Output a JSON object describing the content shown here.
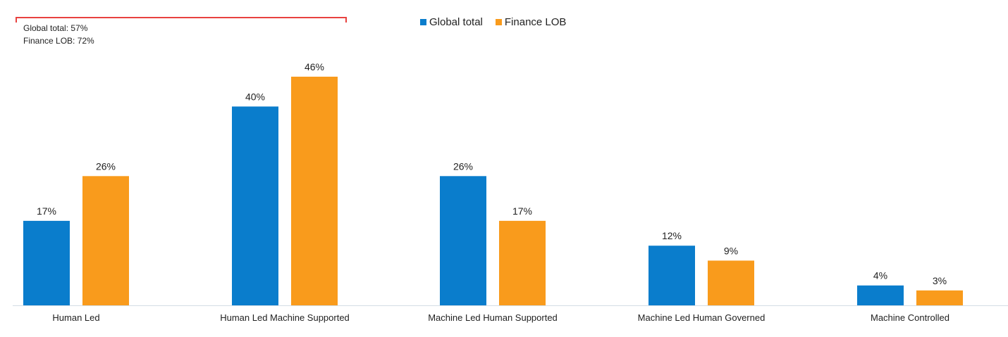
{
  "annotation": {
    "line1": "Global total: 57%",
    "line2": "Finance LOB: 72%"
  },
  "chart_data": {
    "type": "bar",
    "categories": [
      "Human Led",
      "Human Led Machine Supported",
      "Machine Led Human Supported",
      "Machine Led Human Governed",
      "Machine Controlled"
    ],
    "series": [
      {
        "name": "Global total",
        "color": "#0a7dcc",
        "values": [
          17,
          40,
          26,
          12,
          4
        ],
        "labels": [
          "17%",
          "40%",
          "26%",
          "12%",
          "4%"
        ]
      },
      {
        "name": "Finance LOB",
        "color": "#f99b1c",
        "values": [
          26,
          46,
          17,
          9,
          3
        ],
        "labels": [
          "26%",
          "46%",
          "17%",
          "9%",
          "3%"
        ]
      }
    ],
    "ylim": [
      0,
      50
    ],
    "grid": false,
    "legend_position": "top-center"
  }
}
